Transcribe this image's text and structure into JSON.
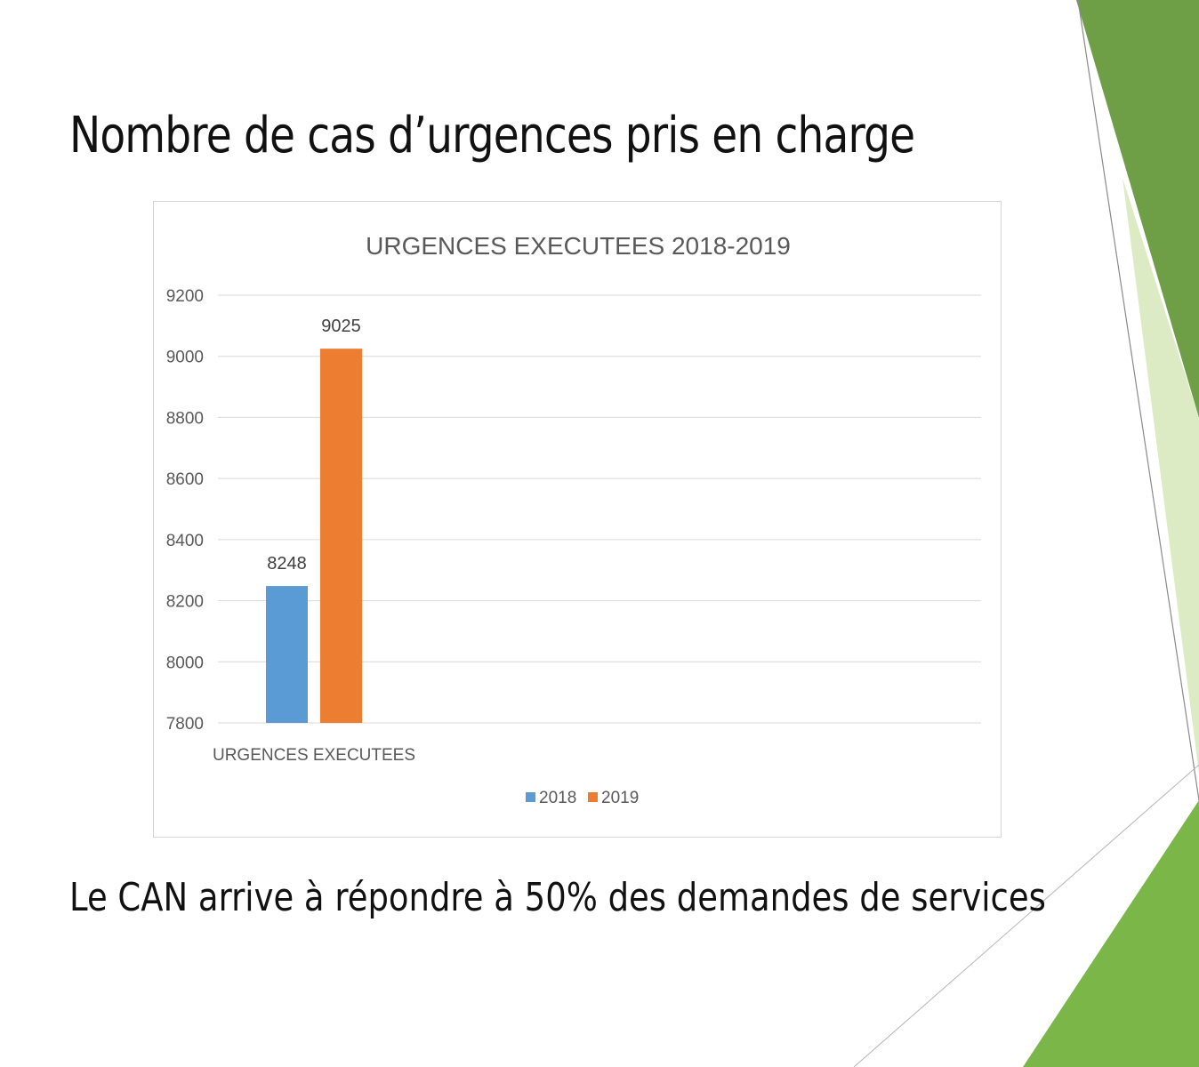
{
  "slide": {
    "title": "Nombre de cas d’urgences pris en charge",
    "footer": "Le CAN arrive à répondre à 50% des demandes de services"
  },
  "theme": {
    "accent_dark": "#6e9e45",
    "accent_mid": "#7ab648",
    "accent_light": "#dcebc4",
    "series_2018": "#5b9bd5",
    "series_2019": "#ed7d31"
  },
  "chart_data": {
    "type": "bar",
    "title": "URGENCES EXECUTEES 2018-2019",
    "categories": [
      "URGENCES EXECUTEES"
    ],
    "series": [
      {
        "name": "2018",
        "values": [
          8248
        ],
        "color": "#5b9bd5"
      },
      {
        "name": "2019",
        "values": [
          9025
        ],
        "color": "#ed7d31"
      }
    ],
    "ylim": [
      7800,
      9200
    ],
    "yticks": [
      7800,
      8000,
      8200,
      8400,
      8600,
      8800,
      9000,
      9200
    ],
    "grid": true,
    "legend": "bottom"
  }
}
